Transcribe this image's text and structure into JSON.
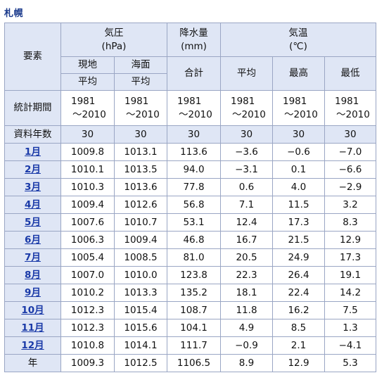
{
  "title": "札幌",
  "header": {
    "element": "要素",
    "pressure": "気圧",
    "pressure_unit": "(hPa)",
    "precip": "降水量",
    "precip_unit": "(mm)",
    "temp": "気温",
    "temp_unit": "(℃)",
    "station": "現地",
    "sea": "海面",
    "avg": "平均",
    "total": "合計",
    "mean": "平均",
    "max": "最高",
    "min": "最低"
  },
  "period_label": "統計期間",
  "period_start": "1981",
  "period_end": "～2010",
  "years_label": "資料年数",
  "years": [
    "30",
    "30",
    "30",
    "30",
    "30",
    "30"
  ],
  "rows": [
    {
      "label": "1月",
      "v": [
        "1009.8",
        "1013.1",
        "113.6",
        "−3.6",
        "−0.6",
        "−7.0"
      ]
    },
    {
      "label": "2月",
      "v": [
        "1010.1",
        "1013.5",
        "94.0",
        "−3.1",
        "0.1",
        "−6.6"
      ]
    },
    {
      "label": "3月",
      "v": [
        "1010.3",
        "1013.6",
        "77.8",
        "0.6",
        "4.0",
        "−2.9"
      ]
    },
    {
      "label": "4月",
      "v": [
        "1009.4",
        "1012.6",
        "56.8",
        "7.1",
        "11.5",
        "3.2"
      ]
    },
    {
      "label": "5月",
      "v": [
        "1007.6",
        "1010.7",
        "53.1",
        "12.4",
        "17.3",
        "8.3"
      ]
    },
    {
      "label": "6月",
      "v": [
        "1006.3",
        "1009.4",
        "46.8",
        "16.7",
        "21.5",
        "12.9"
      ]
    },
    {
      "label": "7月",
      "v": [
        "1005.4",
        "1008.5",
        "81.0",
        "20.5",
        "24.9",
        "17.3"
      ]
    },
    {
      "label": "8月",
      "v": [
        "1007.0",
        "1010.0",
        "123.8",
        "22.3",
        "26.4",
        "19.1"
      ]
    },
    {
      "label": "9月",
      "v": [
        "1010.2",
        "1013.3",
        "135.2",
        "18.1",
        "22.4",
        "14.2"
      ]
    },
    {
      "label": "10月",
      "v": [
        "1012.3",
        "1015.4",
        "108.7",
        "11.8",
        "16.2",
        "7.5"
      ]
    },
    {
      "label": "11月",
      "v": [
        "1012.3",
        "1015.6",
        "104.1",
        "4.9",
        "8.5",
        "1.3"
      ]
    },
    {
      "label": "12月",
      "v": [
        "1010.8",
        "1014.1",
        "111.7",
        "−0.9",
        "2.1",
        "−4.1"
      ]
    }
  ],
  "annual": {
    "label": "年",
    "v": [
      "1009.3",
      "1012.5",
      "1106.5",
      "8.9",
      "12.9",
      "5.3"
    ]
  }
}
